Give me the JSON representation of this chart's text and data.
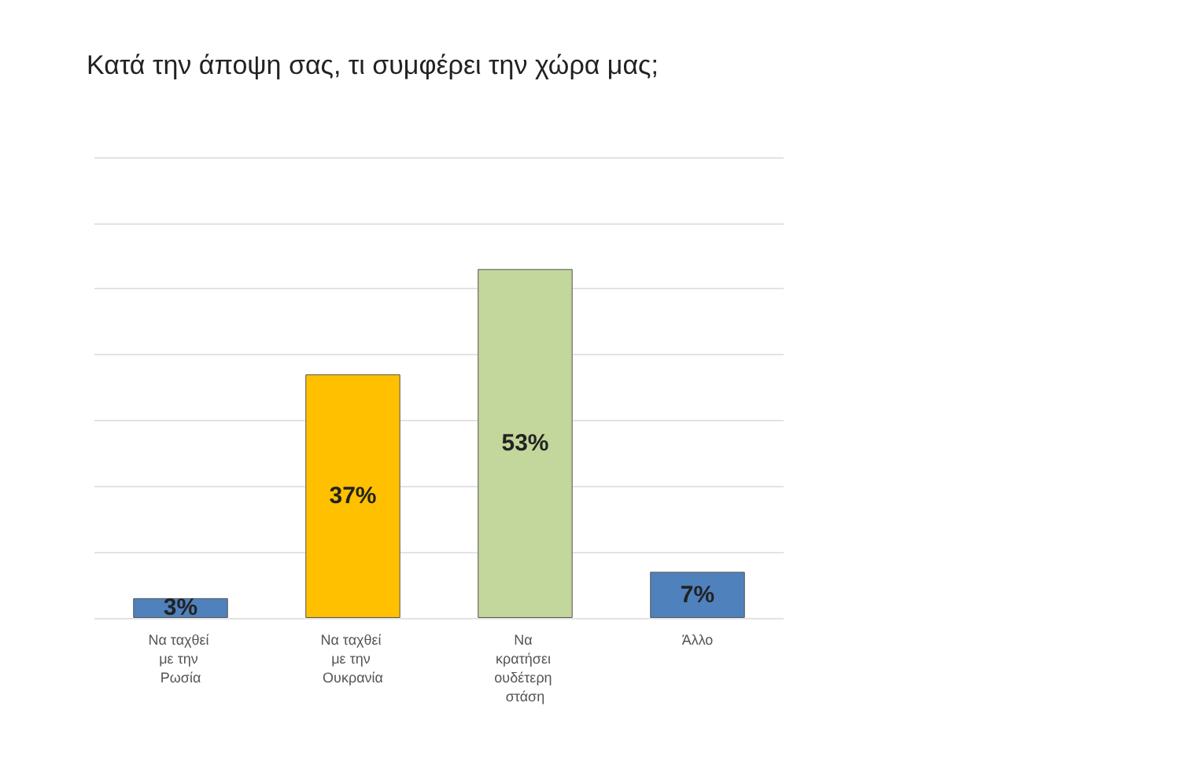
{
  "chart_data": {
    "type": "bar",
    "title": "Κατά την άποψη σας, τι συμφέρει την χώρα μας;",
    "categories": [
      "Να ταχθεί με την Ρωσία",
      "Να ταχθεί με την Ουκρανία",
      "Να κρατήσει ουδέτερη στάση",
      "Άλλο"
    ],
    "values": [
      3,
      37,
      53,
      7
    ],
    "colors": [
      "#4f81bd",
      "#ffc000",
      "#c3d69b",
      "#4f81bd"
    ],
    "value_labels": [
      "3%",
      "37%",
      "53%",
      "7%"
    ],
    "ylim": [
      0,
      70
    ],
    "yticks": [
      {
        "value": 0,
        "label": null
      },
      {
        "value": 10,
        "label": null
      },
      {
        "value": 20,
        "label": null
      },
      {
        "value": 30,
        "label": null
      },
      {
        "value": 40,
        "label": null
      },
      {
        "value": 50,
        "label": null
      },
      {
        "value": 60,
        "label": null
      },
      {
        "value": 70,
        "label": null
      }
    ],
    "grid": "y",
    "tick_labels": "x"
  }
}
